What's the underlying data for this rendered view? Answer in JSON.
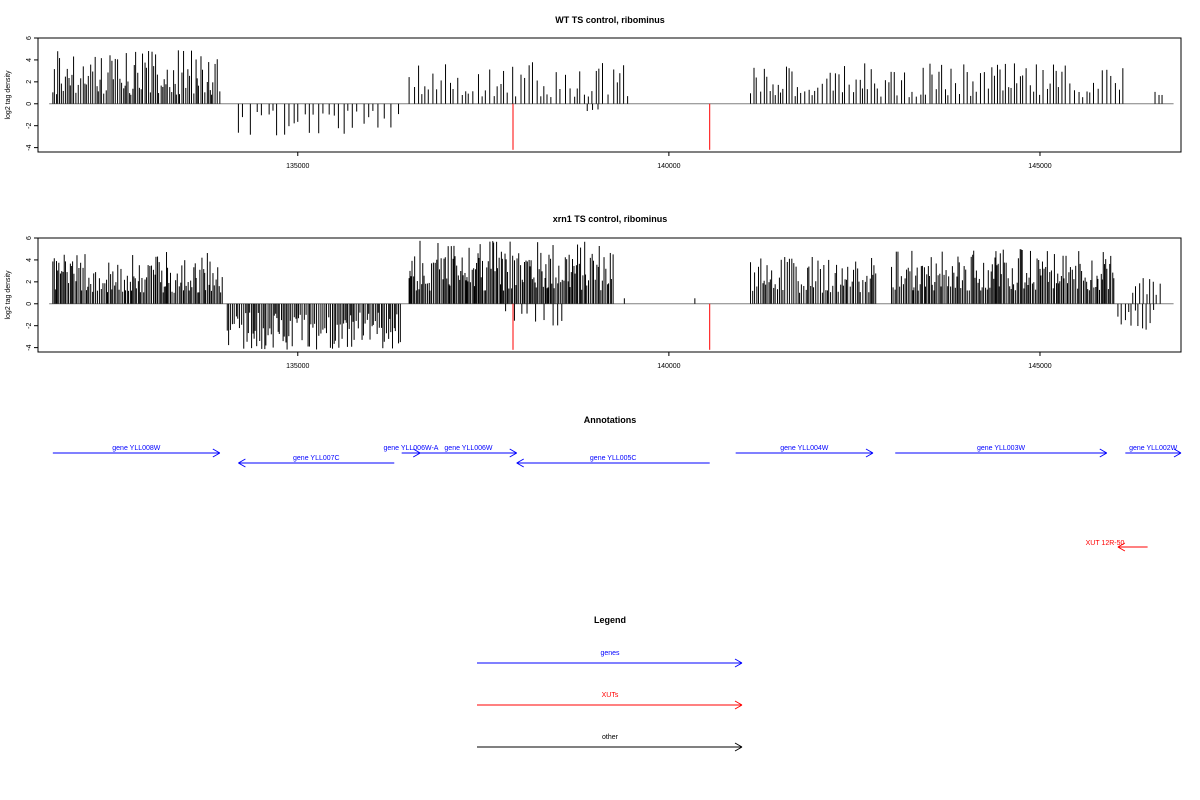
{
  "chart_data": [
    {
      "type": "bar",
      "title": "WT TS control, ribominus",
      "ylabel": "log2 tag density",
      "xlabel": "",
      "xlim": [
        131500,
        146900
      ],
      "ylim": [
        -4.4,
        6
      ],
      "yticks": [
        -4,
        -2,
        0,
        2,
        4,
        6
      ],
      "xticks": [
        135000,
        140000,
        145000
      ],
      "grid": false,
      "bar_color": "#000000",
      "highlight_color": "#ff0000",
      "baseline_color": "#808080",
      "segments": [
        {
          "x": [
            131700,
            133950
          ],
          "sign": 1,
          "min": 0.8,
          "max": 4.9,
          "step": 25,
          "seed": 11
        },
        {
          "x": [
            134200,
            136400
          ],
          "sign": -1,
          "min": 0.6,
          "max": 3.0,
          "step": 80,
          "seed": 12
        },
        {
          "x": [
            136500,
            139500
          ],
          "sign": 1,
          "min": 0.6,
          "max": 3.8,
          "step": 55,
          "seed": 13
        },
        {
          "x": [
            138900,
            139100
          ],
          "sign": -1,
          "min": 0.5,
          "max": 1.0,
          "step": 60,
          "seed": 14
        },
        {
          "x": [
            141100,
            146150
          ],
          "sign": 1,
          "min": 0.6,
          "max": 3.7,
          "step": 45,
          "seed": 15
        },
        {
          "x": [
            146550,
            146650
          ],
          "sign": 1,
          "min": 0.8,
          "max": 1.1,
          "step": 60,
          "seed": 16
        }
      ],
      "highlights": [
        {
          "x": 137900,
          "value": -4.2
        },
        {
          "x": 140550,
          "value": -4.2
        }
      ]
    },
    {
      "type": "bar",
      "title": "xrn1 TS control, ribominus",
      "ylabel": "log2 tag density",
      "xlabel": "",
      "xlim": [
        131500,
        146900
      ],
      "ylim": [
        -4.4,
        6
      ],
      "yticks": [
        -4,
        -2,
        0,
        2,
        4,
        6
      ],
      "xticks": [
        135000,
        140000,
        145000
      ],
      "grid": false,
      "bar_color": "#000000",
      "highlight_color": "#ff0000",
      "baseline_color": "#808080",
      "segments": [
        {
          "x": [
            131700,
            134000
          ],
          "sign": 1,
          "min": 1.0,
          "max": 4.8,
          "step": 20,
          "seed": 21
        },
        {
          "x": [
            134050,
            136400
          ],
          "sign": -1,
          "min": 0.8,
          "max": 4.2,
          "step": 22,
          "seed": 22
        },
        {
          "x": [
            136500,
            139250
          ],
          "sign": 1,
          "min": 1.2,
          "max": 5.8,
          "step": 18,
          "seed": 23
        },
        {
          "x": [
            137800,
            138600
          ],
          "sign": -1,
          "min": 0.6,
          "max": 2.0,
          "step": 90,
          "seed": 24
        },
        {
          "x": [
            141100,
            142800
          ],
          "sign": 1,
          "min": 1.0,
          "max": 4.3,
          "step": 25,
          "seed": 25
        },
        {
          "x": [
            143000,
            146000
          ],
          "sign": 1,
          "min": 1.2,
          "max": 5.0,
          "step": 20,
          "seed": 26
        },
        {
          "x": [
            146050,
            146550
          ],
          "sign": -1,
          "min": 0.5,
          "max": 2.6,
          "step": 50,
          "seed": 27
        },
        {
          "x": [
            146250,
            146650
          ],
          "sign": 1,
          "min": 0.8,
          "max": 2.6,
          "step": 50,
          "seed": 28
        }
      ],
      "extra_bars": [
        {
          "x": 139400,
          "value": 0.5
        },
        {
          "x": 140350,
          "value": 0.5
        }
      ],
      "highlights": [
        {
          "x": 137900,
          "value": -4.2
        },
        {
          "x": 140550,
          "value": -4.2
        }
      ]
    }
  ],
  "annotations": {
    "title": "Annotations",
    "genes": [
      {
        "label": "gene YLL008W",
        "from": 131700,
        "to": 133950,
        "strand": "+",
        "row": 1
      },
      {
        "label": "gene YLL007C",
        "from": 134200,
        "to": 136300,
        "strand": "-",
        "row": 2
      },
      {
        "label": "gene YLL006W-A",
        "from": 136400,
        "to": 136650,
        "strand": "+",
        "row": 1
      },
      {
        "label": "gene YLL006W",
        "from": 136650,
        "to": 137950,
        "strand": "+",
        "row": 1
      },
      {
        "label": "gene YLL005C",
        "from": 137950,
        "to": 140550,
        "strand": "-",
        "row": 2
      },
      {
        "label": "gene YLL004W",
        "from": 140900,
        "to": 142750,
        "strand": "+",
        "row": 1
      },
      {
        "label": "gene YLL003W",
        "from": 143050,
        "to": 145900,
        "strand": "+",
        "row": 1
      },
      {
        "label": "gene YLL002W",
        "from": 146150,
        "to": 147100,
        "strand": "+",
        "row": 1
      }
    ],
    "xuts": [
      {
        "label": "XUT 12R-50",
        "from": 146050,
        "to": 146450,
        "strand": "-"
      }
    ]
  },
  "legend": {
    "title": "Legend",
    "entries": [
      {
        "label": "genes",
        "color": "#0000ff"
      },
      {
        "label": "XUTs",
        "color": "#ff0000"
      },
      {
        "label": "other",
        "color": "#000000"
      }
    ]
  },
  "colors": {
    "gene": "#0000ff",
    "xut": "#ff0000",
    "other": "#000000",
    "axis": "#000000"
  }
}
